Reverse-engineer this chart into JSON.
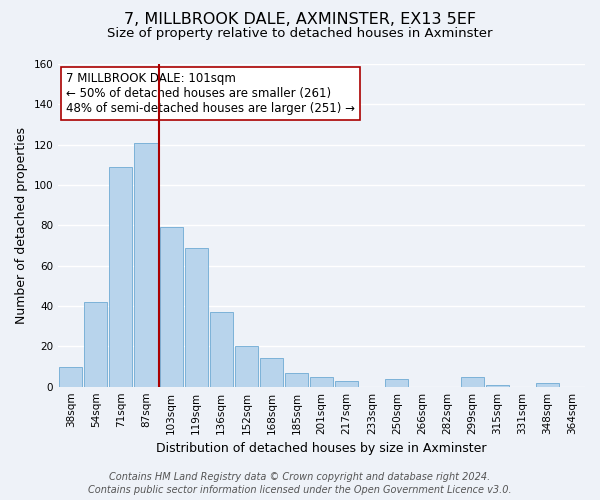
{
  "title": "7, MILLBROOK DALE, AXMINSTER, EX13 5EF",
  "subtitle": "Size of property relative to detached houses in Axminster",
  "xlabel": "Distribution of detached houses by size in Axminster",
  "ylabel": "Number of detached properties",
  "categories": [
    "38sqm",
    "54sqm",
    "71sqm",
    "87sqm",
    "103sqm",
    "119sqm",
    "136sqm",
    "152sqm",
    "168sqm",
    "185sqm",
    "201sqm",
    "217sqm",
    "233sqm",
    "250sqm",
    "266sqm",
    "282sqm",
    "299sqm",
    "315sqm",
    "331sqm",
    "348sqm",
    "364sqm"
  ],
  "values": [
    10,
    42,
    109,
    121,
    79,
    69,
    37,
    20,
    14,
    7,
    5,
    3,
    0,
    4,
    0,
    0,
    5,
    1,
    0,
    2,
    0
  ],
  "bar_color": "#b8d4ec",
  "bar_edge_color": "#6eaad4",
  "vline_color": "#aa0000",
  "annotation_line1": "7 MILLBROOK DALE: 101sqm",
  "annotation_line2": "← 50% of detached houses are smaller (261)",
  "annotation_line3": "48% of semi-detached houses are larger (251) →",
  "ylim": [
    0,
    160
  ],
  "yticks": [
    0,
    20,
    40,
    60,
    80,
    100,
    120,
    140,
    160
  ],
  "footer_line1": "Contains HM Land Registry data © Crown copyright and database right 2024.",
  "footer_line2": "Contains public sector information licensed under the Open Government Licence v3.0.",
  "background_color": "#eef2f8",
  "grid_color": "#ffffff",
  "title_fontsize": 11.5,
  "subtitle_fontsize": 9.5,
  "axis_label_fontsize": 9,
  "tick_fontsize": 7.5,
  "annotation_fontsize": 8.5,
  "footer_fontsize": 7
}
